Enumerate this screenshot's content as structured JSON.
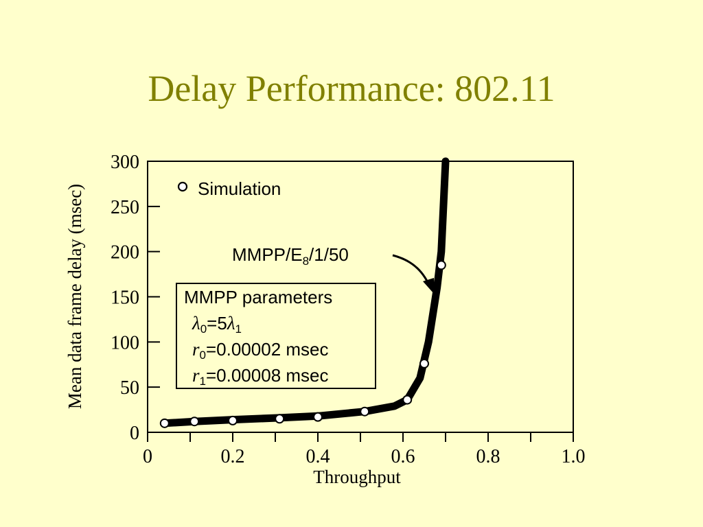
{
  "slide": {
    "title": "Delay Performance: 802.11"
  },
  "chart_data": {
    "type": "line",
    "xlabel": "Throughput",
    "ylabel": "Mean data frame delay (msec)",
    "xlim": [
      0,
      1.0
    ],
    "ylim": [
      0,
      300
    ],
    "x_ticks": [
      0,
      0.1,
      0.2,
      0.3,
      0.4,
      0.5,
      0.6,
      0.7,
      0.8,
      0.9,
      1.0
    ],
    "x_tick_labels": [
      {
        "value": 0,
        "label": "0"
      },
      {
        "value": 0.2,
        "label": "0.2"
      },
      {
        "value": 0.4,
        "label": "0.4"
      },
      {
        "value": 0.6,
        "label": "0.6"
      },
      {
        "value": 0.8,
        "label": "0.8"
      },
      {
        "value": 1.0,
        "label": "1.0"
      }
    ],
    "y_ticks": [
      0,
      50,
      100,
      150,
      200,
      250,
      300
    ],
    "y_tick_labels": [
      "0",
      "50",
      "100",
      "150",
      "200",
      "250",
      "300"
    ],
    "grid": false,
    "legend": {
      "position": "top-left",
      "entries": [
        "Simulation"
      ]
    },
    "series": [
      {
        "kind": "simulation",
        "marker": "open-circle",
        "x": [
          0.04,
          0.11,
          0.2,
          0.31,
          0.4,
          0.51,
          0.61,
          0.65,
          0.69
        ],
        "y": [
          10,
          12,
          13,
          15,
          17,
          23,
          36,
          76,
          185
        ]
      },
      {
        "kind": "analysis",
        "style": "thick-line",
        "x": [
          0.04,
          0.11,
          0.2,
          0.31,
          0.4,
          0.51,
          0.58,
          0.61,
          0.64,
          0.66,
          0.68,
          0.69,
          0.695,
          0.7
        ],
        "y": [
          10,
          12,
          14,
          16,
          18,
          23,
          29,
          36,
          60,
          100,
          160,
          200,
          250,
          300
        ]
      }
    ],
    "annotations": {
      "model": {
        "base": "MMPP/E",
        "sub": "8",
        "rest": "/1/50"
      },
      "params_title": "MMPP parameters",
      "lambda": {
        "sym": "λ",
        "s0": "0",
        "eq": "=5",
        "s1": "1"
      },
      "r0": {
        "sym": "r",
        "sub": "0",
        "val": "=0.00002 msec"
      },
      "r1": {
        "sym": "r",
        "sub": "1",
        "val": "=0.00008 msec"
      }
    }
  }
}
